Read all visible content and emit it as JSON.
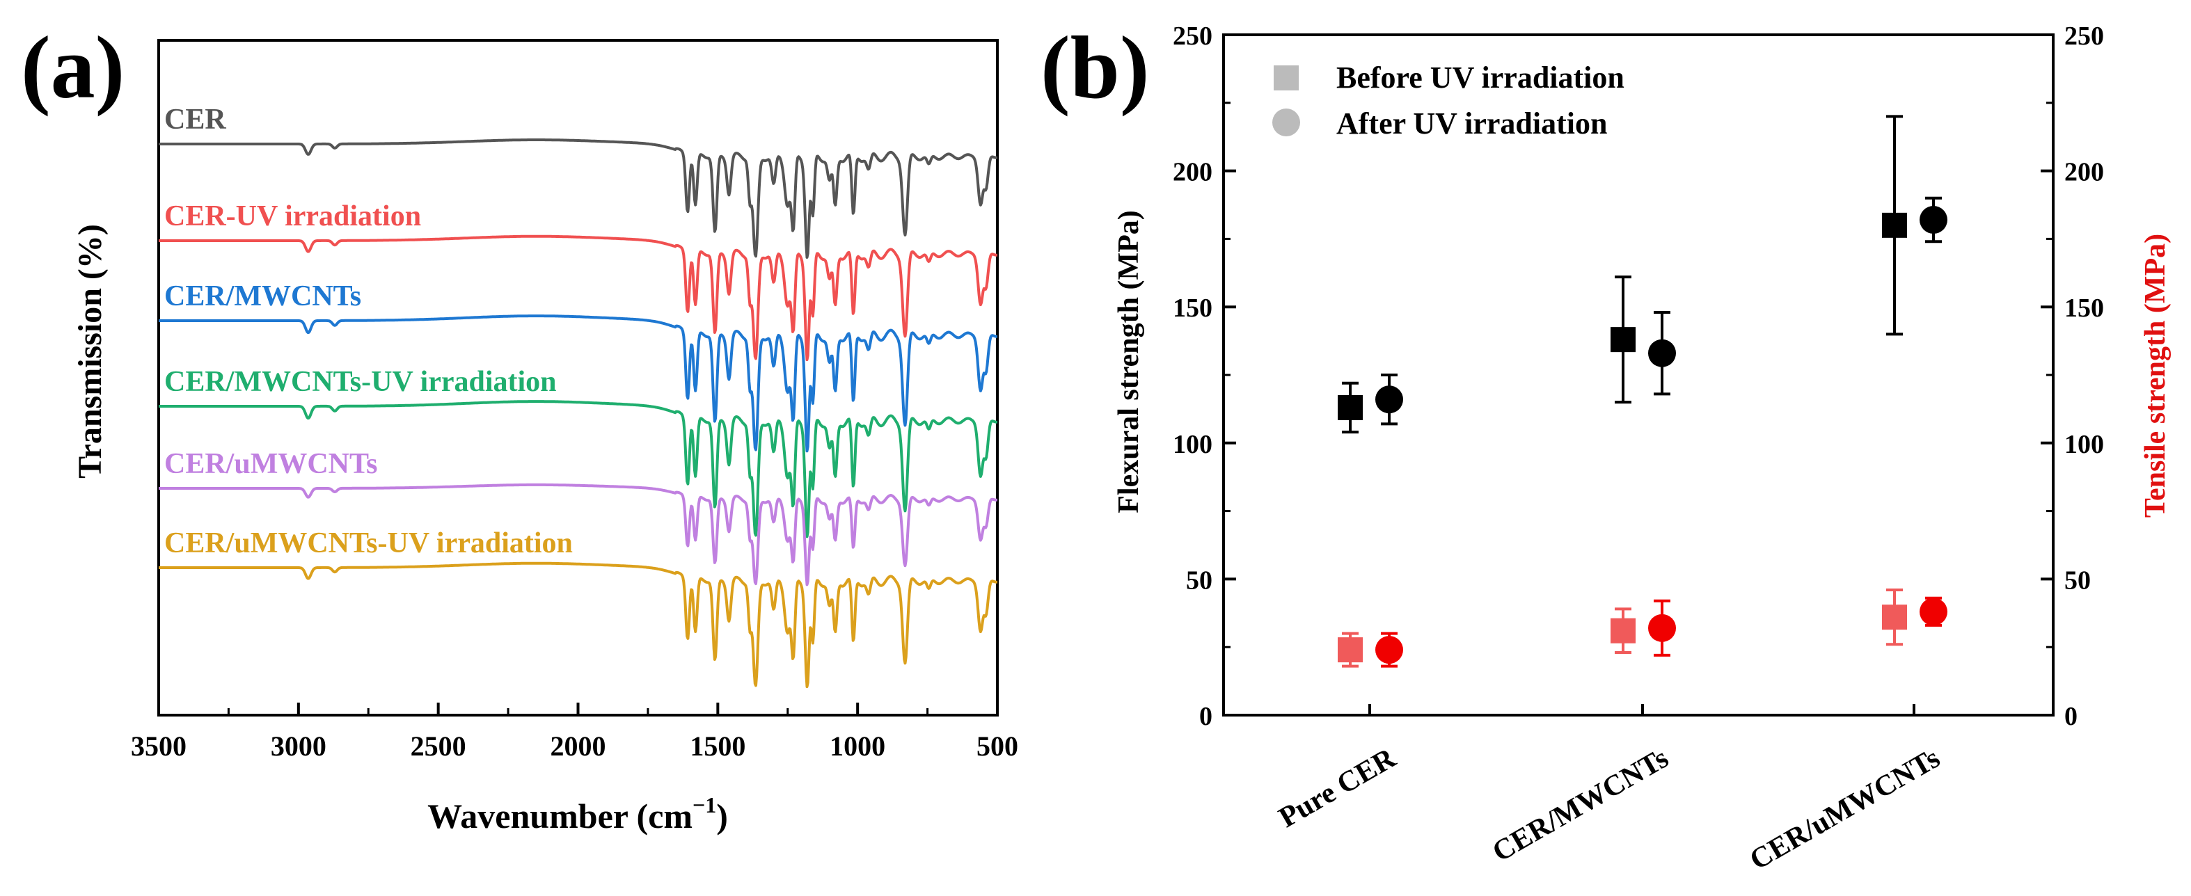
{
  "chart_data": [
    {
      "panel_label": "(a)",
      "type": "line",
      "title": "",
      "xlabel_main": "Wavenumber (cm",
      "xlabel_sup": "−1",
      "xlabel_close": ")",
      "ylabel": "Transmission (%)",
      "xlim": [
        3500,
        500
      ],
      "xticks": [
        3500,
        3000,
        2500,
        2000,
        1500,
        1000,
        500
      ],
      "grid": false,
      "legend_position": "inline labels above each trace",
      "series": [
        {
          "name": "CER",
          "color": "#555555",
          "baseline": 0.0,
          "scale": 1.0
        },
        {
          "name": "CER-UV irradiation",
          "color": "#f05050",
          "baseline": 1.0,
          "scale": 1.05
        },
        {
          "name": "CER/MWCNTs",
          "color": "#1e78d2",
          "baseline": 2.0,
          "scale": 1.15
        },
        {
          "name": "CER/MWCNTs-UV irradiation",
          "color": "#1fae6e",
          "baseline": 3.0,
          "scale": 1.15
        },
        {
          "name": "CER/uMWCNTs",
          "color": "#c080e0",
          "baseline": 4.0,
          "scale": 0.85
        },
        {
          "name": "CER/uMWCNTs-UV irradiation",
          "color": "#dba01c",
          "baseline": 5.0,
          "scale": 1.05
        }
      ],
      "absorption_bands_cm-1": [
        2965,
        1608,
        1580,
        1510,
        1460,
        1365,
        1250,
        1180,
        1080,
        1015,
        830,
        560
      ]
    },
    {
      "panel_label": "(b)",
      "type": "scatter",
      "title": "",
      "categories": [
        "Pure CER",
        "CER/MWCNTs",
        "CER/uMWCNTs"
      ],
      "ylabel_left": "Flexural strength (MPa)",
      "ylabel_right": "Tensile strength (MPa)",
      "ylim_left": [
        0,
        250
      ],
      "ylim_right": [
        0,
        250
      ],
      "yticks": [
        0,
        50,
        100,
        150,
        200,
        250
      ],
      "grid": false,
      "legend_position": "top-left",
      "legend": [
        {
          "name": "Before UV irradiation",
          "marker": "square",
          "color": "#bbbbbb"
        },
        {
          "name": "After UV irradiation",
          "marker": "circle",
          "color": "#bbbbbb"
        }
      ],
      "series": [
        {
          "name": "Flexural strength – Before UV irradiation",
          "axis": "left",
          "marker": "square",
          "color": "#000000",
          "values": [
            113,
            138,
            180
          ],
          "errors": [
            9,
            23,
            40
          ]
        },
        {
          "name": "Flexural strength – After UV irradiation",
          "axis": "left",
          "marker": "circle",
          "color": "#000000",
          "values": [
            116,
            133,
            182
          ],
          "errors": [
            9,
            15,
            8
          ]
        },
        {
          "name": "Tensile strength – Before UV irradiation",
          "axis": "right",
          "marker": "square",
          "color": "#f05a5a",
          "values": [
            24,
            31,
            36
          ],
          "errors": [
            6,
            8,
            10
          ]
        },
        {
          "name": "Tensile strength – After UV irradiation",
          "axis": "right",
          "marker": "circle",
          "color": "#f00000",
          "values": [
            24,
            32,
            38
          ],
          "errors": [
            6,
            10,
            5
          ]
        }
      ],
      "colors": {
        "axis": "#000000",
        "right_label": "#e01010"
      }
    }
  ]
}
